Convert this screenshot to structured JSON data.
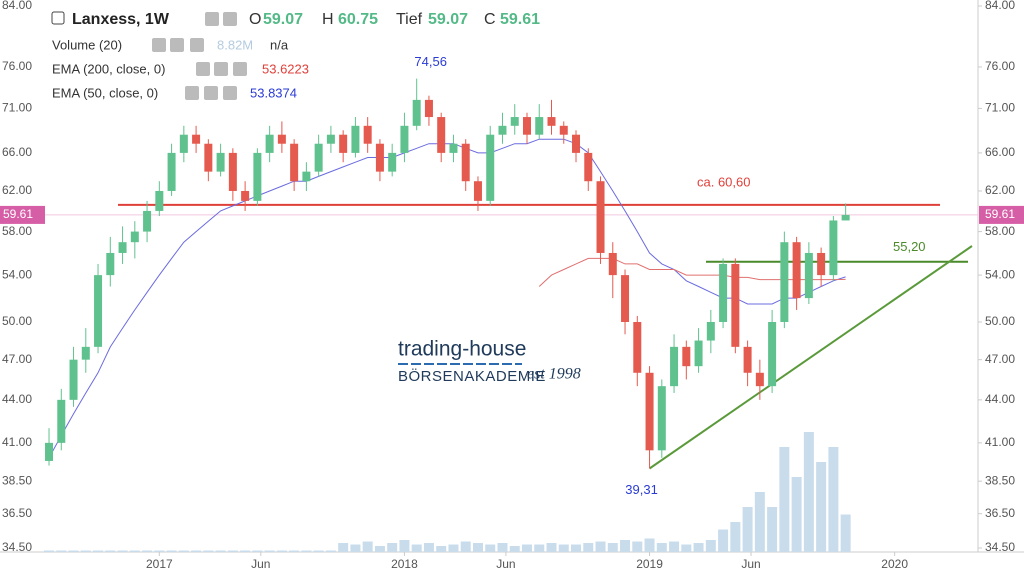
{
  "chart_data": {
    "type": "candlestick",
    "header": {
      "symbol": "Lanxess, 1W",
      "open_label": "O",
      "open": 59.07,
      "high_label": "H",
      "high": 60.75,
      "low_label": "Tief",
      "low": 59.07,
      "close_label": "C",
      "close": 59.61,
      "volume_label": "Volume (20)",
      "volume": "8.82M",
      "volume_ma": "n/a",
      "ema200_label": "EMA (200, close, 0)",
      "ema200": 53.6223,
      "ema50_label": "EMA (50, close, 0)",
      "ema50": 53.8374
    },
    "x": [
      2016.55,
      2016.6,
      2016.65,
      2016.7,
      2016.75,
      2016.8,
      2016.85,
      2016.9,
      2016.95,
      2017.0,
      2017.05,
      2017.1,
      2017.15,
      2017.2,
      2017.25,
      2017.3,
      2017.35,
      2017.4,
      2017.45,
      2017.5,
      2017.55,
      2017.6,
      2017.65,
      2017.7,
      2017.75,
      2017.8,
      2017.85,
      2017.9,
      2017.95,
      2018.0,
      2018.05,
      2018.1,
      2018.15,
      2018.2,
      2018.25,
      2018.3,
      2018.35,
      2018.4,
      2018.45,
      2018.5,
      2018.55,
      2018.6,
      2018.65,
      2018.7,
      2018.75,
      2018.8,
      2018.85,
      2018.9,
      2018.95,
      2019.0,
      2019.05,
      2019.1,
      2019.15,
      2019.2,
      2019.25,
      2019.3,
      2019.35,
      2019.4,
      2019.45,
      2019.5,
      2019.55,
      2019.6,
      2019.65,
      2019.7,
      2019.75,
      2019.8
    ],
    "open": [
      39.8,
      41,
      44,
      47,
      48,
      54,
      56,
      57,
      58,
      60,
      62,
      66,
      68,
      67,
      64,
      66,
      62,
      61,
      66,
      68,
      67,
      63,
      64,
      67,
      68,
      66,
      69,
      67,
      64,
      66,
      69,
      72,
      70,
      66,
      67,
      63,
      61,
      68,
      69,
      70,
      68,
      70,
      69,
      68,
      66,
      63,
      56,
      54,
      50,
      46,
      40.5,
      45,
      48,
      46.5,
      48.5,
      50,
      55,
      48,
      46,
      45,
      50,
      57,
      52,
      56,
      54,
      59.07
    ],
    "high": [
      42,
      44.8,
      48,
      49.5,
      55,
      57.5,
      58.5,
      59,
      61,
      63,
      67,
      69,
      69,
      67.5,
      67,
      66.5,
      63,
      66.5,
      69,
      69.5,
      67.5,
      65,
      68,
      69,
      68.5,
      70,
      70,
      67.5,
      67,
      70.5,
      74.56,
      72.5,
      70.5,
      68,
      67.5,
      63.5,
      69,
      70.5,
      71.5,
      70.5,
      71.5,
      72,
      69.5,
      68.5,
      66.5,
      63.5,
      57,
      54.5,
      50.5,
      46.5,
      45.5,
      49,
      48.5,
      49.5,
      51,
      55.5,
      55.5,
      48.5,
      47,
      51,
      58,
      57.5,
      57,
      56.5,
      59.5,
      60.75
    ],
    "low": [
      39.5,
      40.5,
      43.5,
      46,
      47.5,
      53,
      55,
      55.5,
      57,
      59.5,
      61.5,
      65,
      66,
      63,
      63.5,
      61,
      60,
      60.5,
      65,
      66,
      62,
      62,
      63.5,
      66,
      65,
      65.5,
      66,
      63,
      63.5,
      65,
      68.5,
      69,
      65,
      65,
      62,
      60,
      60.5,
      67,
      68,
      67,
      67.5,
      68,
      67,
      65,
      62,
      55,
      52,
      49,
      45,
      39.31,
      40,
      44.5,
      45.5,
      46,
      47.5,
      49.5,
      47.5,
      45,
      44,
      44.5,
      49.5,
      51,
      51.5,
      53,
      53.5,
      59.07
    ],
    "close": [
      41,
      44,
      47,
      48,
      54,
      56,
      57,
      58,
      60,
      62,
      66,
      68,
      67,
      64,
      66,
      62,
      61,
      66,
      68,
      67,
      63,
      64,
      67,
      68,
      66,
      69,
      67,
      64,
      66,
      69,
      72,
      70,
      66,
      67,
      63,
      61,
      68,
      69,
      70,
      68,
      70,
      69,
      68,
      66,
      63,
      56,
      54,
      50,
      46,
      40.5,
      45,
      48,
      46.5,
      48.5,
      50,
      55,
      48,
      46,
      45,
      50,
      57,
      52,
      56,
      54,
      59.07,
      59.61
    ],
    "volume": [
      0.1,
      0.1,
      0.1,
      0.1,
      0.1,
      0.1,
      0.1,
      0.1,
      0.1,
      0.1,
      0.1,
      0.1,
      0.1,
      0.1,
      0.1,
      0.1,
      0.1,
      0.1,
      0.1,
      0.1,
      0.1,
      0.1,
      0.1,
      0.1,
      0.6,
      0.5,
      0.7,
      0.4,
      0.6,
      0.8,
      0.5,
      0.6,
      0.4,
      0.5,
      0.7,
      0.6,
      0.5,
      0.6,
      0.4,
      0.5,
      0.5,
      0.6,
      0.5,
      0.5,
      0.6,
      0.7,
      0.6,
      0.8,
      0.7,
      0.9,
      0.6,
      0.7,
      0.5,
      0.6,
      0.8,
      1.5,
      2,
      3,
      4,
      3,
      7,
      5,
      8,
      6,
      7,
      2.5
    ],
    "series": [
      {
        "name": "EMA (50, close, 0)",
        "color": "#6b6be0",
        "values": [
          40,
          41.5,
          43,
          44.5,
          46,
          48,
          49.5,
          51,
          52.5,
          54,
          55.5,
          57,
          58,
          59,
          60,
          60.5,
          61,
          61.5,
          62,
          62.5,
          63,
          63,
          63.5,
          64,
          64.5,
          65,
          65.5,
          65.5,
          65.5,
          66,
          66.5,
          67,
          67,
          67,
          66.5,
          66,
          66,
          66.5,
          67,
          67,
          67.5,
          67.5,
          67.5,
          67,
          66,
          64,
          62,
          60,
          58,
          56,
          55,
          54.5,
          53.5,
          53,
          52.5,
          52,
          52,
          51.5,
          51.5,
          51.5,
          52,
          52,
          52.5,
          53,
          53.5,
          53.84
        ]
      },
      {
        "name": "EMA (200, close, 0)",
        "color": "#e07070",
        "values": [
          null,
          null,
          null,
          null,
          null,
          null,
          null,
          null,
          null,
          null,
          null,
          null,
          null,
          null,
          null,
          null,
          null,
          null,
          null,
          null,
          null,
          null,
          null,
          null,
          null,
          null,
          null,
          null,
          null,
          null,
          null,
          null,
          null,
          null,
          null,
          null,
          null,
          null,
          null,
          null,
          53,
          54,
          54.5,
          55,
          55.5,
          55.5,
          55.5,
          55,
          55,
          54.5,
          54.5,
          54.5,
          54,
          54,
          54,
          54,
          53.8,
          53.8,
          53.6,
          53.6,
          53.6,
          53.6,
          53.6,
          53.6,
          53.6,
          53.62
        ]
      }
    ],
    "up_color": "#5fc28e",
    "down_color": "#e55a4f",
    "annotations": [
      {
        "label": "74,56",
        "value": 74.56
      },
      {
        "label": "39,31",
        "value": 39.31
      },
      {
        "label": "ca. 60,60",
        "value": 60.6
      },
      {
        "label": "55,20",
        "value": 55.2
      }
    ],
    "watermark": {
      "name": "trading-house",
      "sub": "BÖRSENAKADEMIE",
      "est": "est 1998"
    },
    "log_scale": true,
    "xlim": [
      2016.35,
      2020.34
    ],
    "xticks": [
      {
        "value": 2017,
        "label": "2017"
      },
      {
        "value": 2017.414,
        "label": "Jun"
      },
      {
        "value": 2018,
        "label": "2018"
      },
      {
        "value": 2018.414,
        "label": "Jun"
      },
      {
        "value": 2019,
        "label": "2019"
      },
      {
        "value": 2019.414,
        "label": "Jun"
      },
      {
        "value": 2020,
        "label": "2020"
      }
    ],
    "ylim": [
      34.5,
      84
    ],
    "yticks": [
      {
        "value": 34.5,
        "label": "34.50"
      },
      {
        "value": 36.5,
        "label": "36.50"
      },
      {
        "value": 38.5,
        "label": "38.50"
      },
      {
        "value": 41,
        "label": "41.00"
      },
      {
        "value": 44,
        "label": "44.00"
      },
      {
        "value": 47,
        "label": "47.00"
      },
      {
        "value": 50,
        "label": "50.00"
      },
      {
        "value": 54,
        "label": "54.00"
      },
      {
        "value": 58,
        "label": "58.00"
      },
      {
        "value": 62,
        "label": "62.00"
      },
      {
        "value": 66,
        "label": "66.00"
      },
      {
        "value": 71,
        "label": "71.00"
      },
      {
        "value": 76,
        "label": "76.00"
      },
      {
        "value": 84,
        "label": "84.00"
      }
    ]
  }
}
